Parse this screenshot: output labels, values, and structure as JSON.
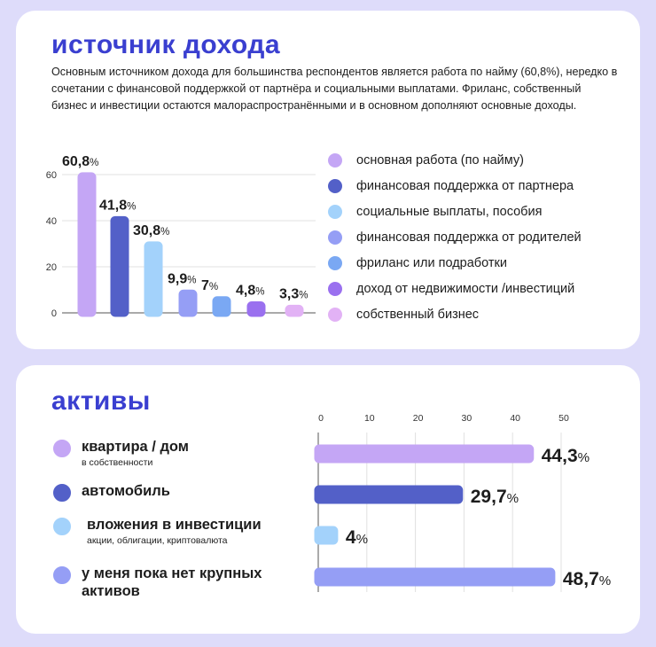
{
  "income": {
    "title": "источник дохода",
    "description": "Основным источником дохода для большинства респондентов является работа по найму (60,8%), нередко в сочетании с финансовой поддержкой от партнёра и социальными выплатами. Фриланс, собственный бизнес и инвестиции остаются малораспространёнными и в основном дополняют основные доходы."
  },
  "assets": {
    "title": "активы"
  },
  "chart_data": [
    {
      "type": "bar",
      "title": "источник дохода",
      "categories": [
        "основная работа (по найму)",
        "финансовая поддержка от партнера",
        "социальные выплаты, пособия",
        "финансовая поддержка от родителей",
        "фриланс или подработки",
        "доход от недвижимости /инвестиций",
        "собственный бизнес"
      ],
      "values": [
        60.8,
        41.8,
        30.8,
        9.9,
        7,
        4.8,
        3.3
      ],
      "labels": [
        "60,8",
        "41,8",
        "30,8",
        "9,9",
        "7",
        "4,8",
        "3,3"
      ],
      "colors": [
        "#c4a6f5",
        "#5360c8",
        "#a3d2fb",
        "#959ef5",
        "#7aa8f3",
        "#9a70ef",
        "#e2b2f5"
      ],
      "yticks": [
        0,
        20,
        40,
        60
      ],
      "ylim": [
        0,
        60
      ],
      "grid": true,
      "legend": "right"
    },
    {
      "type": "bar",
      "orientation": "horizontal",
      "title": "активы",
      "categories": [
        "квартира / дом",
        "автомобиль",
        "вложения в инвестиции",
        "у меня пока нет крупных активов"
      ],
      "sublabels": [
        "в собственности",
        "",
        "акции, облигации, криптовалюта",
        ""
      ],
      "values": [
        44.3,
        29.7,
        4,
        48.7
      ],
      "labels": [
        "44,3",
        "29,7",
        "4",
        "48,7"
      ],
      "colors": [
        "#c4a6f5",
        "#5360c8",
        "#a3d2fb",
        "#959ef5"
      ],
      "xticks": [
        0,
        10,
        20,
        30,
        40,
        50
      ],
      "xlim": [
        0,
        50
      ],
      "grid": true
    }
  ],
  "percent": "%"
}
